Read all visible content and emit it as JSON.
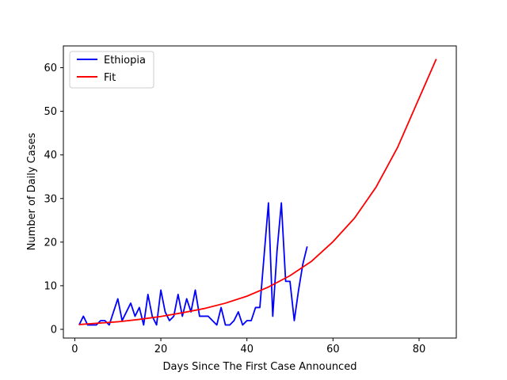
{
  "chart_data": {
    "type": "line",
    "title": "",
    "xlabel": "Days Since The First Case Announced",
    "ylabel": "Number of Daily Cases",
    "xlim": [
      -2.65,
      88.65
    ],
    "ylim": [
      -2,
      65
    ],
    "xticks": [
      0,
      20,
      40,
      60,
      80
    ],
    "yticks": [
      0,
      10,
      20,
      30,
      40,
      50,
      60
    ],
    "grid": false,
    "legend": {
      "placement": "top-left",
      "entries": [
        "Ethiopia",
        "Fit"
      ]
    },
    "series": [
      {
        "name": "Ethiopia",
        "color": "#0000ff",
        "x": [
          1,
          2,
          3,
          4,
          5,
          6,
          7,
          8,
          9,
          10,
          11,
          12,
          13,
          14,
          15,
          16,
          17,
          18,
          19,
          20,
          21,
          22,
          23,
          24,
          25,
          26,
          27,
          28,
          29,
          30,
          31,
          32,
          33,
          34,
          35,
          36,
          37,
          38,
          39,
          40,
          41,
          42,
          43,
          44,
          45,
          46,
          47,
          48,
          49,
          50,
          51,
          52,
          53,
          54
        ],
        "y": [
          1,
          3,
          1,
          1,
          1,
          2,
          2,
          1,
          4,
          7,
          2,
          4,
          6,
          3,
          5,
          1,
          8,
          3,
          1,
          9,
          4,
          2,
          3,
          8,
          3,
          7,
          4,
          9,
          3,
          3,
          3,
          2,
          1,
          5,
          1,
          1,
          2,
          4,
          1,
          2,
          2,
          5,
          5,
          17,
          29,
          3,
          18,
          29,
          11,
          11,
          2,
          9,
          15,
          19
        ]
      },
      {
        "name": "Fit",
        "color": "#ff0000",
        "x": [
          1,
          5,
          10,
          15,
          20,
          25,
          30,
          35,
          40,
          45,
          50,
          55,
          60,
          65,
          70,
          75,
          80,
          84
        ],
        "y": [
          1.1,
          1.38,
          1.73,
          2.28,
          2.95,
          3.8,
          4.75,
          6.0,
          7.6,
          9.7,
          12.3,
          15.6,
          20.1,
          25.5,
          32.6,
          41.7,
          53.0,
          62.0
        ]
      }
    ]
  }
}
